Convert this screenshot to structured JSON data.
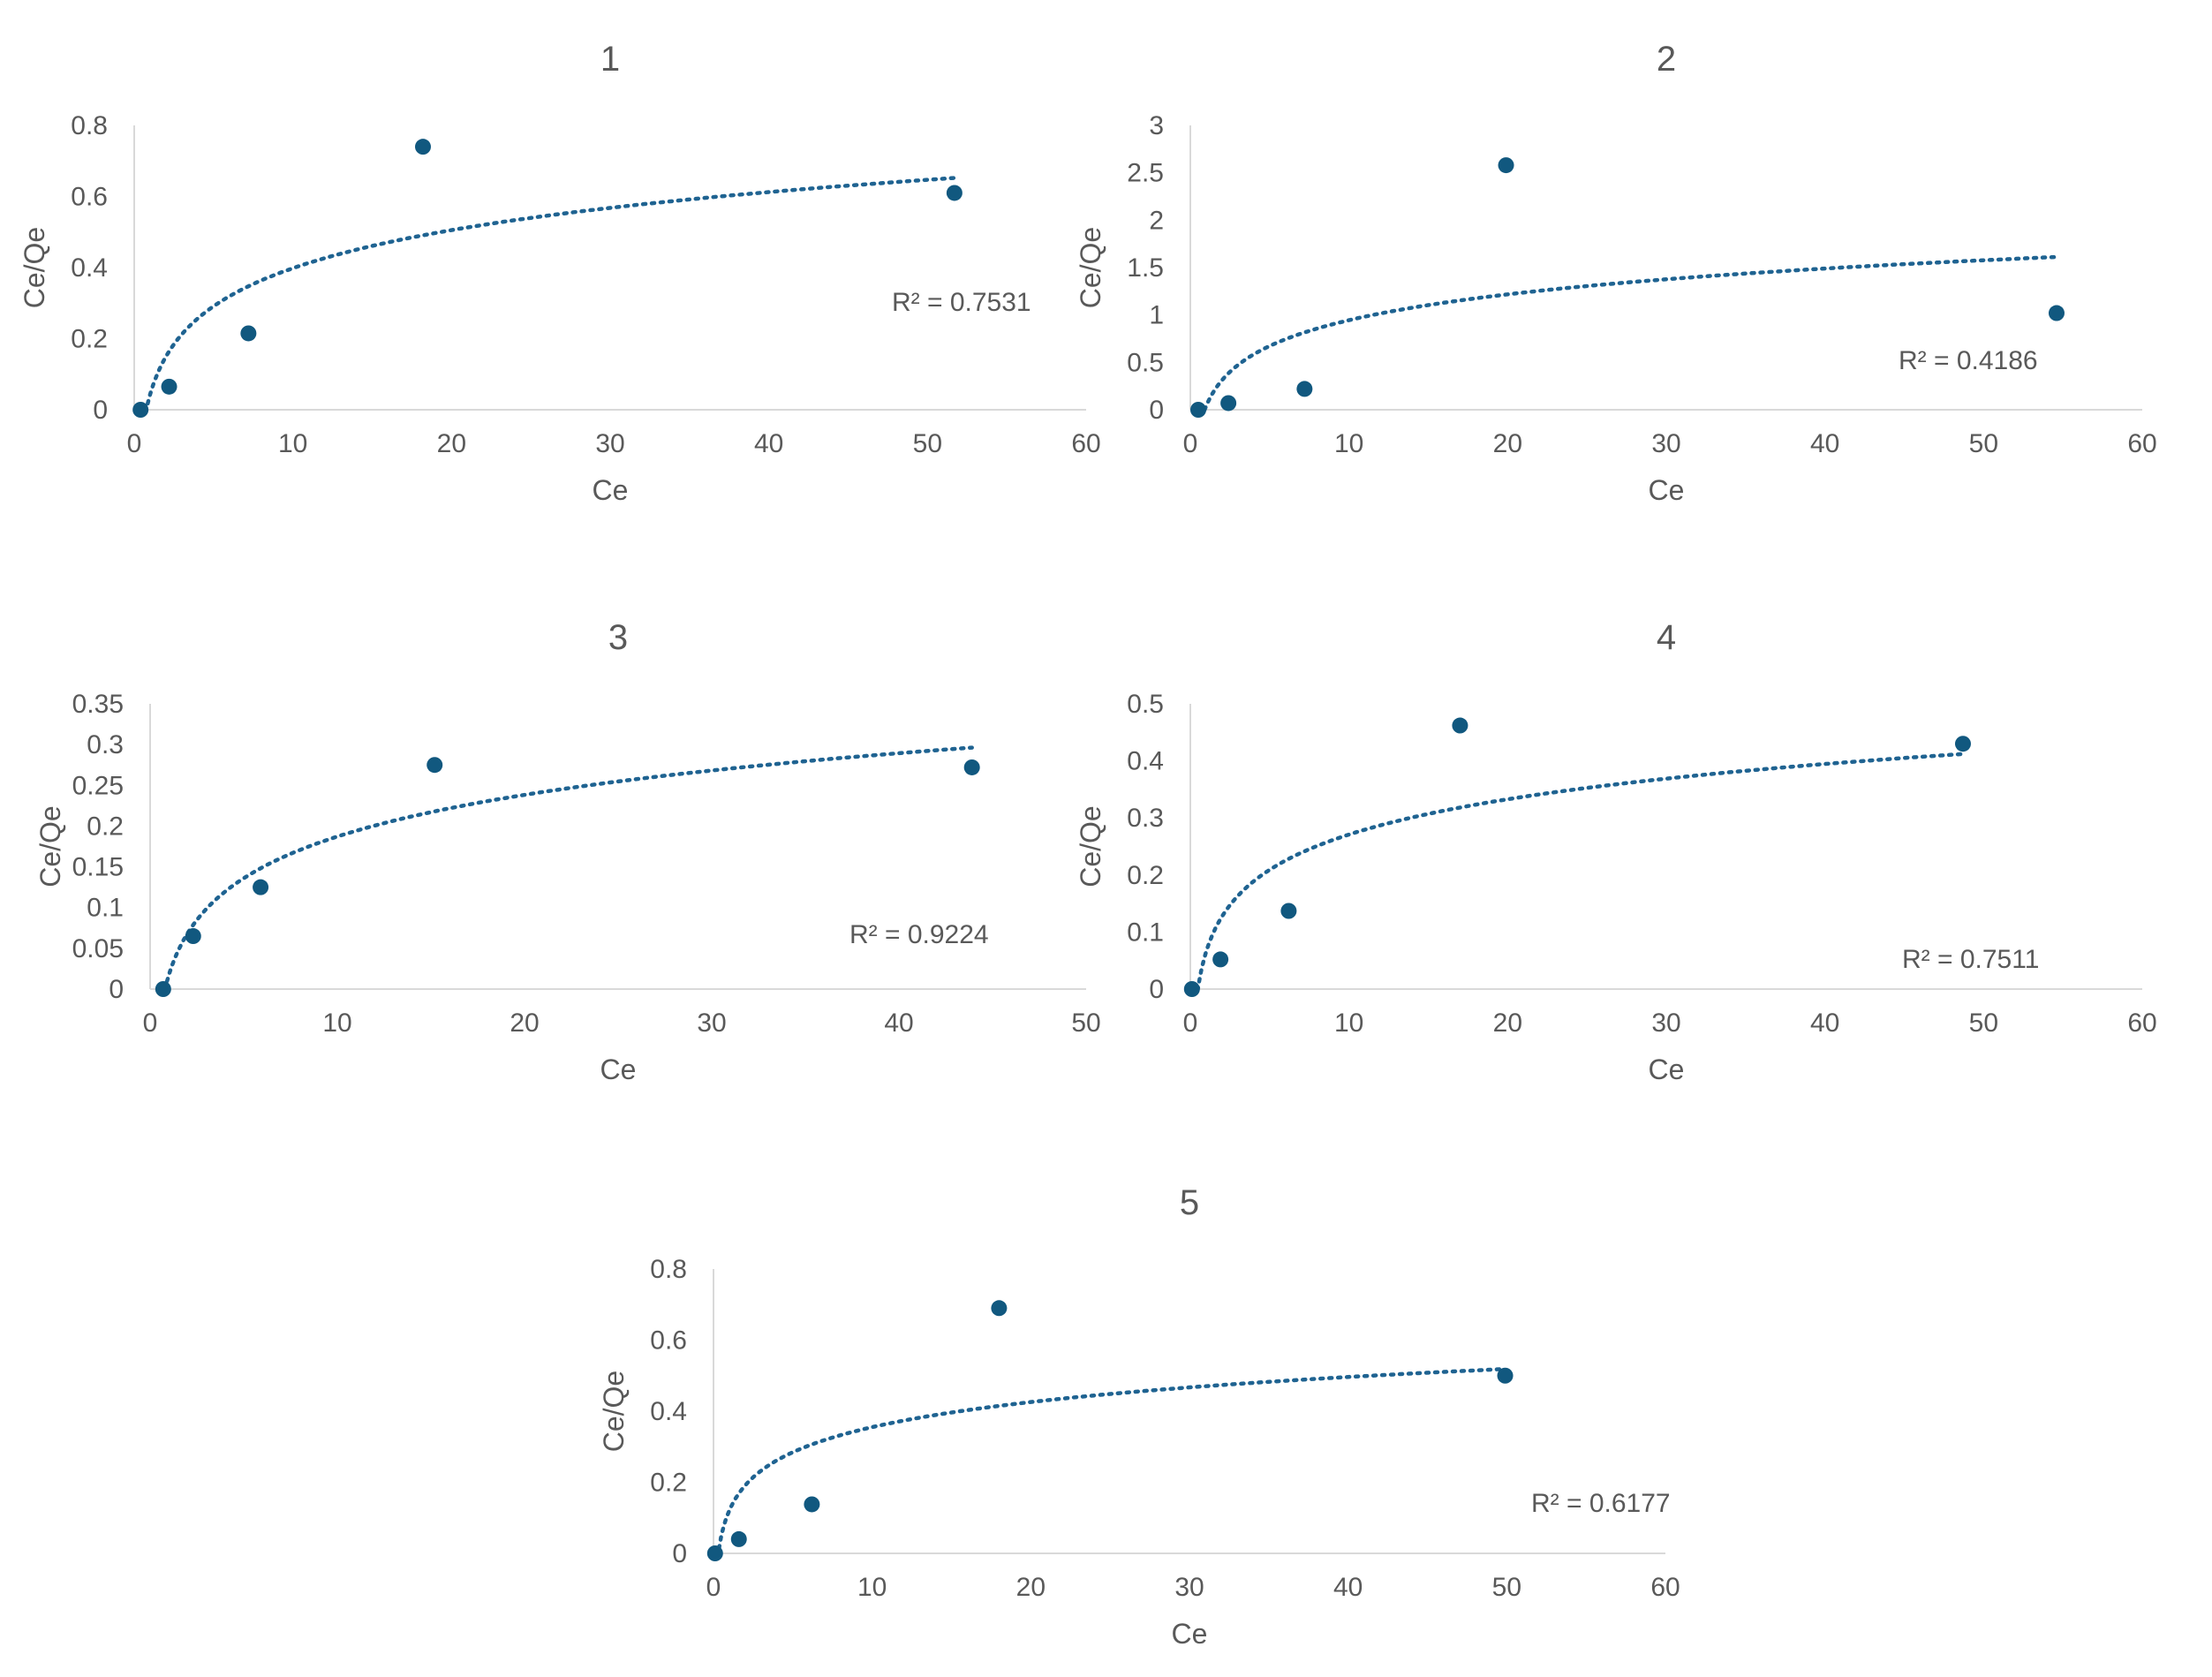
{
  "chart_data": [
    {
      "type": "scatter",
      "title": "1",
      "xlabel": "Ce",
      "ylabel": "Ce/Qe",
      "xlim": [
        0,
        60
      ],
      "ylim": [
        0,
        0.8
      ],
      "xticks": [
        "0",
        "10",
        "20",
        "30",
        "40",
        "50",
        "60"
      ],
      "yticks": [
        "0",
        "0.2",
        "0.4",
        "0.6",
        "0.8"
      ],
      "points": [
        {
          "x": 0.4,
          "y": 0.0
        },
        {
          "x": 2.2,
          "y": 0.065
        },
        {
          "x": 7.2,
          "y": 0.215
        },
        {
          "x": 18.2,
          "y": 0.74
        },
        {
          "x": 51.7,
          "y": 0.61
        }
      ],
      "trendline": {
        "type": "logarithmic",
        "x_from": 0.6,
        "x_to": 51.7,
        "y_at_1": 0.0425,
        "slope_ln": 0.1545
      },
      "r_squared_label": "R² = 0.7531",
      "grid": false,
      "legend": "none"
    },
    {
      "type": "scatter",
      "title": "2",
      "xlabel": "Ce",
      "ylabel": "Ce/Qe",
      "xlim": [
        0,
        60
      ],
      "ylim": [
        0,
        3
      ],
      "xticks": [
        "0",
        "10",
        "20",
        "30",
        "40",
        "50",
        "60"
      ],
      "yticks": [
        "0",
        "0.5",
        "1",
        "1.5",
        "2",
        "2.5",
        "3"
      ],
      "points": [
        {
          "x": 0.5,
          "y": 0.0
        },
        {
          "x": 2.4,
          "y": 0.07
        },
        {
          "x": 7.2,
          "y": 0.22
        },
        {
          "x": 19.9,
          "y": 2.58
        },
        {
          "x": 54.6,
          "y": 1.02
        }
      ],
      "trendline": {
        "type": "logarithmic",
        "x_from": 0.9,
        "x_to": 54.6,
        "y_at_1": 0.04,
        "slope_ln": 0.393
      },
      "r_squared_label": "R² = 0.4186",
      "grid": false,
      "legend": "none"
    },
    {
      "type": "scatter",
      "title": "3",
      "xlabel": "Ce",
      "ylabel": "Ce/Qe",
      "xlim": [
        0,
        50
      ],
      "ylim": [
        0,
        0.35
      ],
      "xticks": [
        "0",
        "10",
        "20",
        "30",
        "40",
        "50"
      ],
      "yticks": [
        "0",
        "0.05",
        "0.1",
        "0.15",
        "0.2",
        "0.25",
        "0.3",
        "0.35"
      ],
      "points": [
        {
          "x": 0.7,
          "y": 0.0
        },
        {
          "x": 2.3,
          "y": 0.065
        },
        {
          "x": 5.9,
          "y": 0.125
        },
        {
          "x": 15.2,
          "y": 0.275
        },
        {
          "x": 43.9,
          "y": 0.272
        }
      ],
      "trendline": {
        "type": "logarithmic",
        "x_from": 0.75,
        "x_to": 43.9,
        "y_at_1": 0.0172,
        "slope_ln": 0.0738
      },
      "r_squared_label": "R² = 0.9224",
      "grid": false,
      "legend": "none"
    },
    {
      "type": "scatter",
      "title": "4",
      "xlabel": "Ce",
      "ylabel": "Ce/Qe",
      "xlim": [
        0,
        60
      ],
      "ylim": [
        0,
        0.5
      ],
      "xticks": [
        "0",
        "10",
        "20",
        "30",
        "40",
        "50",
        "60"
      ],
      "yticks": [
        "0",
        "0.1",
        "0.2",
        "0.3",
        "0.4",
        "0.5"
      ],
      "points": [
        {
          "x": 0.1,
          "y": 0.0
        },
        {
          "x": 1.9,
          "y": 0.052
        },
        {
          "x": 6.2,
          "y": 0.137
        },
        {
          "x": 17.0,
          "y": 0.462
        },
        {
          "x": 48.7,
          "y": 0.43
        }
      ],
      "trendline": {
        "type": "logarithmic",
        "x_from": 0.4,
        "x_to": 48.7,
        "y_at_1": 0.0655,
        "slope_ln": 0.0892
      },
      "r_squared_label": "R² = 0.7511",
      "grid": false,
      "legend": "none"
    },
    {
      "type": "scatter",
      "title": "5",
      "xlabel": "Ce",
      "ylabel": "Ce/Qe",
      "xlim": [
        0,
        60
      ],
      "ylim": [
        0,
        0.8
      ],
      "xticks": [
        "0",
        "10",
        "20",
        "30",
        "40",
        "50",
        "60"
      ],
      "yticks": [
        "0",
        "0.2",
        "0.4",
        "0.6",
        "0.8"
      ],
      "points": [
        {
          "x": 0.1,
          "y": 0.0
        },
        {
          "x": 1.6,
          "y": 0.04
        },
        {
          "x": 6.2,
          "y": 0.138
        },
        {
          "x": 18.0,
          "y": 0.69
        },
        {
          "x": 49.9,
          "y": 0.5
        }
      ],
      "trendline": {
        "type": "logarithmic",
        "x_from": 0.35,
        "x_to": 49.9,
        "y_at_1": 0.1207,
        "slope_ln": 0.1018
      },
      "r_squared_label": "R² = 0.6177",
      "grid": false,
      "legend": "none"
    }
  ]
}
